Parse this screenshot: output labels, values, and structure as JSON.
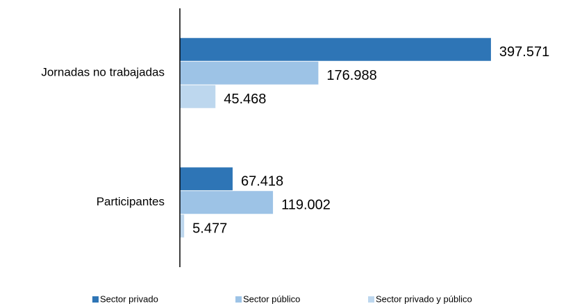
{
  "chart_data": {
    "type": "hbar",
    "categories": [
      "Jornadas no trabajadas",
      "Participantes"
    ],
    "series": [
      {
        "name": "Sector privado",
        "color": "#2e75b6",
        "values": [
          397571,
          67418
        ],
        "value_labels": [
          "397.571",
          "67.418"
        ]
      },
      {
        "name": "Sector público",
        "color": "#9dc3e6",
        "values": [
          176988,
          119002
        ],
        "value_labels": [
          "176.988",
          "119.002"
        ]
      },
      {
        "name": "Sector privado y público",
        "color": "#bdd7ee",
        "values": [
          45468,
          5477
        ],
        "value_labels": [
          "45.468",
          "5.477"
        ]
      }
    ],
    "xlim": [
      0,
      450000
    ],
    "legend": "bottom"
  }
}
